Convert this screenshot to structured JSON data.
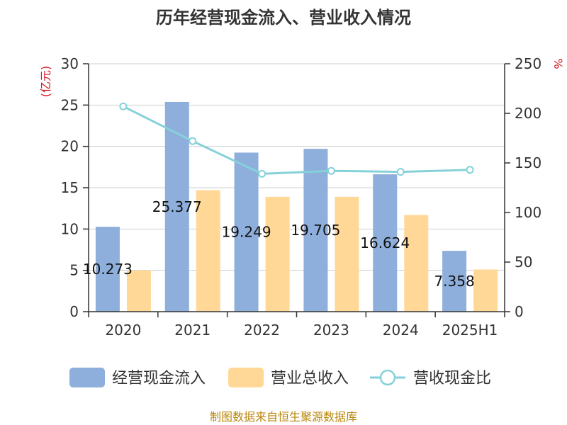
{
  "chart_data": {
    "type": "bar",
    "title": "历年经营现金流入、营业收入情况",
    "categories": [
      "2020",
      "2021",
      "2022",
      "2023",
      "2024",
      "2025H1"
    ],
    "y_left": {
      "unit": "(亿元)",
      "ylim": [
        0,
        30
      ],
      "ticks": [
        0,
        5,
        10,
        15,
        20,
        25,
        30
      ]
    },
    "y_right": {
      "unit": "%",
      "ylim": [
        0,
        250
      ],
      "ticks": [
        0,
        50,
        100,
        150,
        200,
        250
      ]
    },
    "grid": true,
    "legend_position": "bottom",
    "series": [
      {
        "name": "经营现金流入",
        "type": "bar",
        "axis": "left",
        "color": "#8eaedb",
        "values": [
          10.273,
          25.377,
          19.249,
          19.705,
          16.624,
          7.358
        ],
        "labels": [
          "10.273",
          "25.377",
          "19.249",
          "19.705",
          "16.624",
          "7.358"
        ]
      },
      {
        "name": "营业总收入",
        "type": "bar",
        "axis": "left",
        "color": "#ffd897",
        "values": [
          5.0,
          14.7,
          13.9,
          13.9,
          11.7,
          5.1
        ]
      },
      {
        "name": "营收现金比",
        "type": "line",
        "axis": "right",
        "color": "#86d1d9",
        "values": [
          207,
          172,
          139,
          142,
          141,
          143
        ]
      }
    ]
  },
  "source": "制图数据来自恒生聚源数据库"
}
